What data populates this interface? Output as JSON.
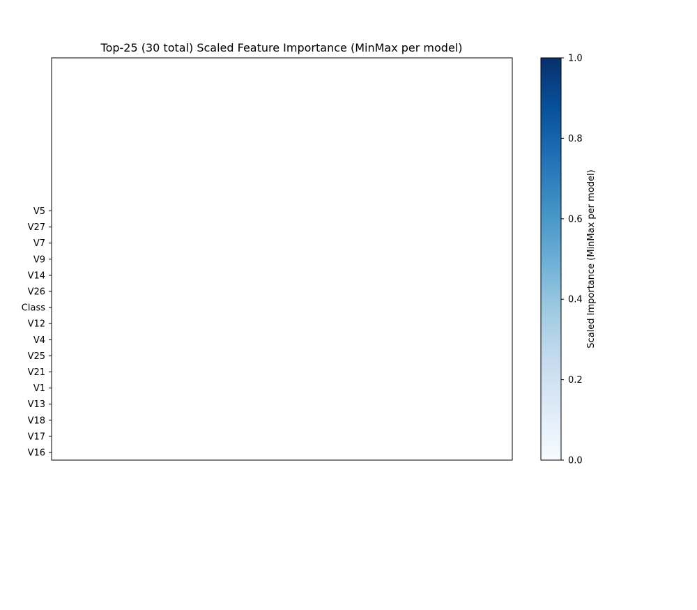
{
  "chart_data": {
    "type": "heatmap",
    "title": "Top-25 (30 total) Scaled Feature Importance (MinMax per model)",
    "xlabel": "",
    "ylabel": "",
    "rows": [
      "V5",
      "V27",
      "V7",
      "V9",
      "V14",
      "V26",
      "Class",
      "V12",
      "V4",
      "V25",
      "V21",
      "V1",
      "V13",
      "V18",
      "V17",
      "V16"
    ],
    "columns": [],
    "values": [],
    "colorbar": {
      "label": "Scaled Importance (MinMax per model)",
      "colormap": "Blues",
      "range": [
        0,
        1
      ],
      "ticks": [
        "0.0",
        "0.2",
        "0.4",
        "0.6",
        "0.8",
        "1.0"
      ],
      "low_color": "#f7fbff",
      "high_color": "#08306b"
    },
    "grid": false
  }
}
